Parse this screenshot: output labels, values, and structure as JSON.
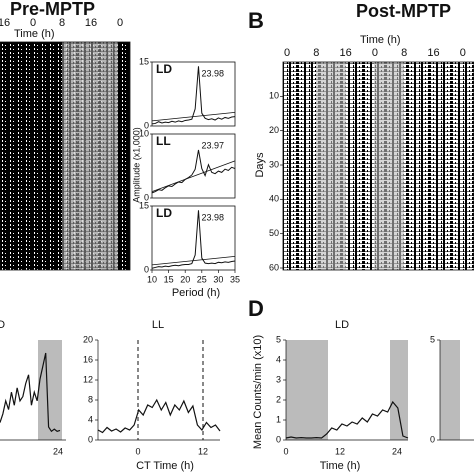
{
  "panel_a": {
    "title": "Pre-MPTP",
    "x_label": "Time (h)",
    "x_ticks": [
      "16",
      "0",
      "8",
      "16",
      "0"
    ]
  },
  "periodograms": {
    "y_label": "Amplitude (x1,000)",
    "x_label": "Period (h)",
    "x_ticks": [
      10,
      15,
      20,
      25,
      30,
      35
    ],
    "period": [
      10,
      11,
      12,
      13,
      14,
      15,
      16,
      17,
      18,
      19,
      20,
      21,
      22,
      23,
      24,
      25,
      26,
      27,
      28,
      29,
      30,
      31,
      32,
      33,
      34,
      35
    ],
    "panels": [
      {
        "label": "LD",
        "peak": "23.98",
        "yticks": [
          0,
          15
        ],
        "threshold": [
          1.2,
          3.2
        ],
        "values": [
          0.5,
          0.6,
          1.0,
          0.7,
          0.9,
          0.8,
          1.1,
          0.9,
          1.2,
          1.0,
          1.3,
          1.4,
          1.6,
          4,
          14,
          3,
          1.8,
          1.5,
          1.7,
          1.4,
          1.9,
          1.6,
          2.0,
          1.8,
          2.1,
          2.2
        ]
      },
      {
        "label": "LL",
        "peak": "23.97",
        "yticks": [
          0,
          10
        ],
        "threshold": [
          1.0,
          5.8
        ],
        "values": [
          0.8,
          1.0,
          1.3,
          1.2,
          1.6,
          1.9,
          1.8,
          2.2,
          2.5,
          2.4,
          2.9,
          3.2,
          3.6,
          4.5,
          7.5,
          4.6,
          3.5,
          5.2,
          4.0,
          3.8,
          4.2,
          4.0,
          4.5,
          4.3,
          4.8,
          4.6
        ]
      },
      {
        "label": "LD",
        "peak": "23.98",
        "yticks": [
          0,
          15
        ],
        "threshold": [
          1.2,
          3.2
        ],
        "values": [
          0.4,
          0.6,
          0.8,
          0.7,
          0.9,
          0.8,
          1.0,
          1.1,
          1.0,
          1.2,
          1.3,
          1.3,
          1.5,
          3.5,
          14,
          2.8,
          1.6,
          1.5,
          1.6,
          1.5,
          1.8,
          1.7,
          1.9,
          1.8,
          2.0,
          2.1
        ]
      }
    ]
  },
  "panel_b": {
    "letter": "B",
    "title": "Post-MPTP",
    "x_label": "Time (h)",
    "x_ticks": [
      "0",
      "8",
      "16",
      "0",
      "8",
      "16",
      "0"
    ],
    "y_label": "Days",
    "y_ticks": [
      10,
      20,
      30,
      40,
      50,
      60
    ]
  },
  "panel_c_ld": {
    "title": "LD",
    "x_ticks": [
      24
    ],
    "values": [
      4,
      6,
      9,
      7,
      11,
      8,
      12,
      9,
      10,
      13,
      15,
      8,
      11,
      9,
      14,
      17,
      20,
      3,
      2,
      2.5,
      2,
      2.2
    ]
  },
  "panel_c_ll": {
    "title": "LL",
    "x_label": "CT Time (h)",
    "y_ticks": [
      0,
      4,
      8,
      12,
      16,
      20
    ],
    "x_ticks": [
      0,
      12
    ],
    "values": [
      2,
      1.5,
      2.5,
      1.8,
      2.2,
      1.6,
      2.4,
      2,
      3,
      6,
      5,
      7,
      6.5,
      8,
      6,
      7.5,
      5,
      7,
      6,
      7.8,
      5.5,
      6.8,
      3,
      2,
      3.5,
      2.5,
      3,
      1.8
    ]
  },
  "panel_d": {
    "letter": "D",
    "title": "LD",
    "y_label": "Mean Counts/min (x10)",
    "x_label": "Time (h)",
    "y_ticks": [
      0,
      1,
      2,
      3,
      4,
      5
    ],
    "x_ticks": [
      0,
      12,
      24
    ],
    "values": [
      0.1,
      0.15,
      0.1,
      0.12,
      0.1,
      0.1,
      0.12,
      0.1,
      0.3,
      0.6,
      0.5,
      0.8,
      0.7,
      0.9,
      0.8,
      1.1,
      0.9,
      1.3,
      1.2,
      1.5,
      1.4,
      1.9,
      1.6,
      0.2,
      0.1
    ]
  },
  "panel_d2": {
    "y_ticks": [
      0,
      5
    ]
  }
}
